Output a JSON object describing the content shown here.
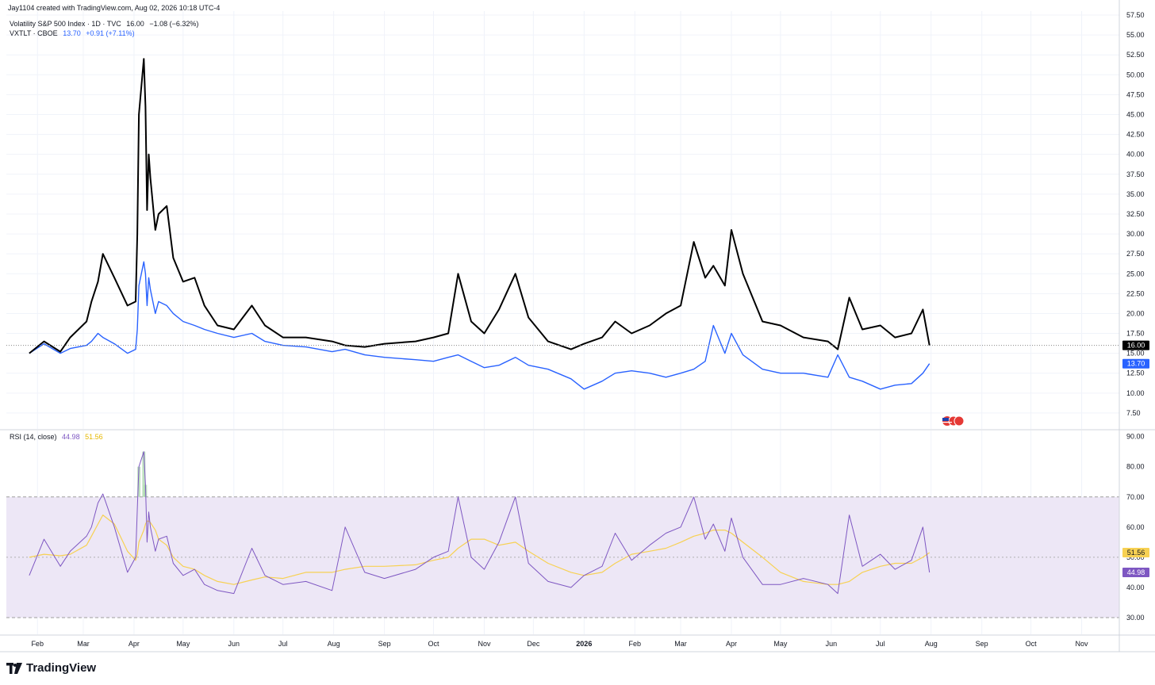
{
  "header": {
    "created_by": "Jay1104 created with TradingView.com, Aug 02, 2026 10:18 UTC-4"
  },
  "legend_main": {
    "vix_title": "Volatility S&P 500 Index · 1D · TVC",
    "vix_value": "16.00",
    "vix_change": "−1.08 (−6.32%)",
    "vxtlt_title": "VXTLT · CBOE",
    "vxtlt_value": "13.70",
    "vxtlt_change": "+0.91 (+7.11%)"
  },
  "legend_rsi": {
    "title": "RSI (14, close)",
    "rsi_value": "44.98",
    "ma_value": "51.56"
  },
  "price_badges": {
    "vix": "16.00",
    "vxtlt": "13.70",
    "rsi_ma": "51.56",
    "rsi": "44.98"
  },
  "brand": {
    "name": "TradingView"
  },
  "colors": {
    "vix": "#000000",
    "vxtlt": "#2962ff",
    "rsi": "#7e57c2",
    "rsi_ma": "#f7d153",
    "rsi_band": "#ede7f6",
    "grid": "#f0f3fa",
    "axis_text": "#131722"
  },
  "chart_data": [
    {
      "type": "line",
      "x_tick_labels": [
        "Feb",
        "Mar",
        "Apr",
        "May",
        "Jun",
        "Jul",
        "Aug",
        "Sep",
        "Oct",
        "Nov",
        "Dec",
        "2026",
        "Feb",
        "Mar",
        "Apr",
        "May",
        "Jun",
        "Jul",
        "Aug",
        "Sep",
        "Oct",
        "Nov"
      ],
      "y_tick_labels": [
        "57.50",
        "55.00",
        "52.50",
        "50.00",
        "47.50",
        "45.00",
        "42.50",
        "40.00",
        "37.50",
        "35.00",
        "32.50",
        "30.00",
        "27.50",
        "25.00",
        "22.50",
        "20.00",
        "17.50",
        "15.00",
        "12.50",
        "10.00",
        "7.50"
      ],
      "ylim": [
        5.5,
        58
      ],
      "x": [
        "2025-01-27",
        "2025-02-05",
        "2025-02-15",
        "2025-02-21",
        "2025-03-03",
        "2025-03-06",
        "2025-03-10",
        "2025-03-13",
        "2025-03-20",
        "2025-03-28",
        "2025-04-02",
        "2025-04-03",
        "2025-04-04",
        "2025-04-07",
        "2025-04-08",
        "2025-04-09",
        "2025-04-10",
        "2025-04-11",
        "2025-04-14",
        "2025-04-16",
        "2025-04-21",
        "2025-04-25",
        "2025-05-01",
        "2025-05-08",
        "2025-05-14",
        "2025-05-22",
        "2025-06-01",
        "2025-06-12",
        "2025-06-20",
        "2025-07-01",
        "2025-07-15",
        "2025-07-31",
        "2025-08-08",
        "2025-08-20",
        "2025-09-01",
        "2025-09-20",
        "2025-10-01",
        "2025-10-10",
        "2025-10-16",
        "2025-10-24",
        "2025-11-01",
        "2025-11-10",
        "2025-11-20",
        "2025-11-28",
        "2025-12-10",
        "2025-12-24",
        "2026-01-01",
        "2026-01-12",
        "2026-01-20",
        "2026-01-30",
        "2026-02-10",
        "2026-02-20",
        "2026-03-01",
        "2026-03-09",
        "2026-03-16",
        "2026-03-21",
        "2026-03-28",
        "2026-04-01",
        "2026-04-08",
        "2026-04-20",
        "2026-05-01",
        "2026-05-15",
        "2026-05-30",
        "2026-06-05",
        "2026-06-12",
        "2026-06-20",
        "2026-07-01",
        "2026-07-10",
        "2026-07-20",
        "2026-07-27",
        "2026-07-31"
      ],
      "series": [
        {
          "name": "Volatility S&P 500 Index",
          "values": [
            15.0,
            16.5,
            15.2,
            17.0,
            19.0,
            21.5,
            24.0,
            27.5,
            24.5,
            21.0,
            21.5,
            30.0,
            45.0,
            52.0,
            46.0,
            33.0,
            40.0,
            37.0,
            30.5,
            32.5,
            33.5,
            27.0,
            24.0,
            24.5,
            21.0,
            18.5,
            18.0,
            21.0,
            18.5,
            17.0,
            17.0,
            16.5,
            16.0,
            15.8,
            16.2,
            16.5,
            17.0,
            17.5,
            25.0,
            19.0,
            17.5,
            20.5,
            25.0,
            19.5,
            16.5,
            15.5,
            16.2,
            17.0,
            19.0,
            17.5,
            18.5,
            20.0,
            21.0,
            29.0,
            24.5,
            26.0,
            23.5,
            30.5,
            25.0,
            19.0,
            18.5,
            17.0,
            16.5,
            15.5,
            22.0,
            18.0,
            18.5,
            17.0,
            17.5,
            20.5,
            16.0
          ]
        },
        {
          "name": "VXTLT",
          "values": [
            15.0,
            16.2,
            15.0,
            15.6,
            16.0,
            16.5,
            17.5,
            17.0,
            16.2,
            15.0,
            15.5,
            18.0,
            23.5,
            26.5,
            25.0,
            21.0,
            24.5,
            23.0,
            20.0,
            21.5,
            21.0,
            20.0,
            19.0,
            18.5,
            18.0,
            17.5,
            17.0,
            17.5,
            16.5,
            16.0,
            15.8,
            15.2,
            15.5,
            14.8,
            14.5,
            14.2,
            14.0,
            14.5,
            14.8,
            14.0,
            13.2,
            13.5,
            14.5,
            13.5,
            13.0,
            11.8,
            10.5,
            11.5,
            12.5,
            12.8,
            12.5,
            12.0,
            12.5,
            13.0,
            14.0,
            18.5,
            15.0,
            17.5,
            14.8,
            13.0,
            12.5,
            12.5,
            12.0,
            14.8,
            12.0,
            11.5,
            10.5,
            11.0,
            11.2,
            12.5,
            13.7
          ]
        }
      ]
    },
    {
      "type": "line",
      "title": "RSI (14, close)",
      "y_tick_labels": [
        "90.00",
        "80.00",
        "70.00",
        "60.00",
        "50.00",
        "40.00",
        "30.00"
      ],
      "ylim": [
        24.5,
        92
      ],
      "bands": [
        30,
        70
      ],
      "x": [
        "2025-01-27",
        "2025-02-05",
        "2025-02-15",
        "2025-02-21",
        "2025-03-03",
        "2025-03-06",
        "2025-03-10",
        "2025-03-13",
        "2025-03-20",
        "2025-03-28",
        "2025-04-02",
        "2025-04-03",
        "2025-04-04",
        "2025-04-07",
        "2025-04-08",
        "2025-04-09",
        "2025-04-10",
        "2025-04-11",
        "2025-04-14",
        "2025-04-16",
        "2025-04-21",
        "2025-04-25",
        "2025-05-01",
        "2025-05-08",
        "2025-05-14",
        "2025-05-22",
        "2025-06-01",
        "2025-06-12",
        "2025-06-20",
        "2025-07-01",
        "2025-07-15",
        "2025-07-31",
        "2025-08-08",
        "2025-08-20",
        "2025-09-01",
        "2025-09-20",
        "2025-10-01",
        "2025-10-10",
        "2025-10-16",
        "2025-10-24",
        "2025-11-01",
        "2025-11-10",
        "2025-11-20",
        "2025-11-28",
        "2025-12-10",
        "2025-12-24",
        "2026-01-01",
        "2026-01-12",
        "2026-01-20",
        "2026-01-30",
        "2026-02-10",
        "2026-02-20",
        "2026-03-01",
        "2026-03-09",
        "2026-03-16",
        "2026-03-21",
        "2026-03-28",
        "2026-04-01",
        "2026-04-08",
        "2026-04-20",
        "2026-05-01",
        "2026-05-15",
        "2026-05-30",
        "2026-06-05",
        "2026-06-12",
        "2026-06-20",
        "2026-07-01",
        "2026-07-10",
        "2026-07-20",
        "2026-07-27",
        "2026-07-31"
      ],
      "series": [
        {
          "name": "RSI",
          "values": [
            44.0,
            56.0,
            47.0,
            52.0,
            57.0,
            60.0,
            68.0,
            71.0,
            60.0,
            45.0,
            50.0,
            66.0,
            80.0,
            85.0,
            74.0,
            55.0,
            65.0,
            60.0,
            52.0,
            56.0,
            57.0,
            48.0,
            44.0,
            46.0,
            41.0,
            39.0,
            38.0,
            53.0,
            44.0,
            41.0,
            42.0,
            39.0,
            60.0,
            45.0,
            43.0,
            46.0,
            50.0,
            52.0,
            70.0,
            50.0,
            46.0,
            55.0,
            70.0,
            48.0,
            42.0,
            40.0,
            44.0,
            47.0,
            58.0,
            49.0,
            54.0,
            58.0,
            60.0,
            70.0,
            56.0,
            61.0,
            52.0,
            63.0,
            50.0,
            41.0,
            41.0,
            43.0,
            41.0,
            38.0,
            64.0,
            47.0,
            51.0,
            46.0,
            49.0,
            60.0,
            44.98
          ]
        },
        {
          "name": "RSI-based MA",
          "values": [
            50.0,
            51.0,
            50.5,
            51.0,
            54.0,
            57.0,
            61.0,
            64.0,
            61.0,
            52.0,
            49.0,
            51.0,
            55.0,
            59.0,
            61.0,
            62.0,
            62.0,
            61.5,
            59.0,
            56.0,
            54.0,
            50.0,
            47.0,
            46.0,
            44.0,
            42.0,
            41.0,
            42.5,
            43.5,
            43.0,
            45.0,
            45.0,
            46.0,
            47.0,
            47.0,
            47.5,
            49.0,
            50.0,
            53.0,
            56.0,
            56.0,
            54.0,
            55.0,
            52.0,
            48.0,
            45.0,
            44.0,
            45.0,
            48.0,
            51.0,
            52.0,
            53.0,
            55.0,
            57.0,
            58.0,
            59.0,
            59.0,
            58.0,
            55.0,
            50.0,
            45.0,
            42.0,
            41.0,
            41.0,
            42.0,
            45.0,
            47.0,
            48.0,
            48.0,
            50.0,
            51.56
          ]
        }
      ]
    }
  ]
}
